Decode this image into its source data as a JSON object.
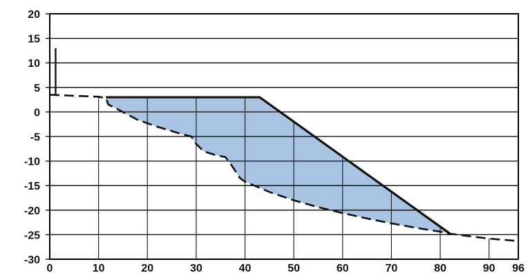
{
  "chart_data": {
    "type": "area",
    "title": "",
    "xlabel": "",
    "ylabel": "",
    "xlim": [
      0,
      96
    ],
    "ylim": [
      -30,
      20
    ],
    "x_ticks": [
      0,
      10,
      20,
      30,
      40,
      50,
      60,
      70,
      80,
      90,
      96
    ],
    "y_ticks": [
      20,
      15,
      10,
      5,
      0,
      -5,
      -10,
      -15,
      -20,
      -25,
      -30
    ],
    "x_tick_labels": [
      "0",
      "10",
      "20",
      "30",
      "40",
      "50",
      "60",
      "70",
      "80",
      "90",
      "96"
    ],
    "y_tick_labels": [
      "20",
      "15",
      "10",
      "5",
      "0",
      "-5",
      "-10",
      "-15",
      "-20",
      "-25",
      "-30"
    ],
    "grid": {
      "horizontal": true,
      "vertical": false
    },
    "vertical_marker": {
      "x": 1.2,
      "y_top": 13,
      "y_bottom": 3.5
    },
    "original_ground": {
      "style": "dashed",
      "x": [
        0,
        10,
        11.5,
        12,
        14,
        18,
        22,
        27,
        29,
        30,
        31.5,
        34,
        36,
        37,
        39,
        40,
        45,
        50,
        55,
        60,
        65,
        70,
        75,
        80,
        82,
        85,
        90,
        96
      ],
      "y": [
        3.5,
        3.1,
        2.8,
        1.5,
        0.5,
        -1.6,
        -3.0,
        -4.5,
        -5.0,
        -6.5,
        -8.0,
        -8.8,
        -9.2,
        -10.5,
        -13.5,
        -14.2,
        -16.3,
        -18.0,
        -19.4,
        -20.6,
        -21.7,
        -22.7,
        -23.6,
        -24.4,
        -24.8,
        -25.2,
        -25.8,
        -26.3
      ]
    },
    "design_profile": {
      "style": "solid",
      "x": [
        11.5,
        43,
        82
      ],
      "y": [
        3.0,
        3.0,
        -24.8
      ]
    },
    "fill_region": {
      "color": "#a9c3e2",
      "upper": "design_profile",
      "lower": "original_ground",
      "x_range": [
        11.5,
        82
      ]
    },
    "fill_section_lines_x": [
      10,
      20,
      30,
      40,
      50,
      60,
      70,
      80,
      90
    ],
    "colors": {
      "line": "#111111",
      "fill": "#a9c3e2",
      "grid": "#000000"
    }
  }
}
